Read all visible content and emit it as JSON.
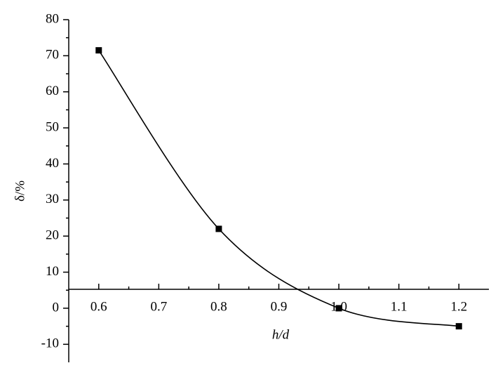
{
  "chart_data": {
    "type": "scatter",
    "x_label": "h/d",
    "y_label": "δ/%",
    "series": [
      {
        "x": [
          0.6,
          0.8,
          1.0,
          1.2
        ],
        "values": [
          71.5,
          22,
          0,
          -5
        ],
        "color": "#000000"
      }
    ],
    "xlim": [
      0.55,
      1.25
    ],
    "xticks": [
      0.6,
      0.7,
      0.8,
      0.9,
      {
        "value": 1,
        "label": "1.0"
      },
      1.1,
      1.2
    ],
    "ylim": [
      -15,
      80
    ],
    "yticks": [
      -10,
      0,
      10,
      20,
      30,
      40,
      50,
      60,
      70,
      80
    ],
    "smooth_line": true
  }
}
